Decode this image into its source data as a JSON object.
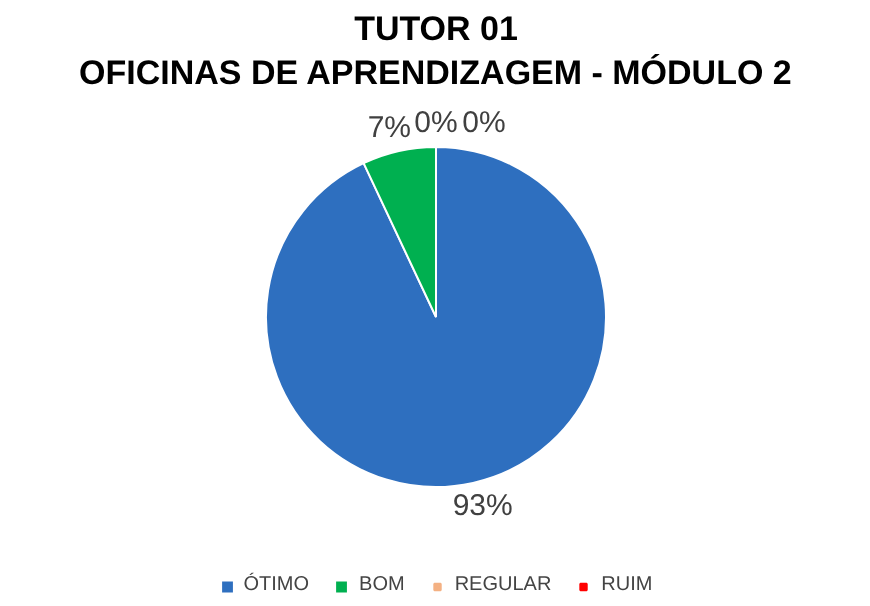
{
  "chart_data": {
    "type": "pie",
    "title": "TUTOR 01",
    "subtitle": "OFICINAS DE APRENDIZAGEM - MÓDULO 2",
    "categories": [
      "ÓTIMO",
      "BOM",
      "REGULAR",
      "RUIM"
    ],
    "values": [
      93,
      7,
      0,
      0
    ],
    "colors": [
      "#2e6fbf",
      "#00b050",
      "#f4b183",
      "#ff0000"
    ],
    "value_labels": [
      "93%",
      "7%",
      "0%",
      "0%"
    ],
    "legend": "bottom"
  }
}
